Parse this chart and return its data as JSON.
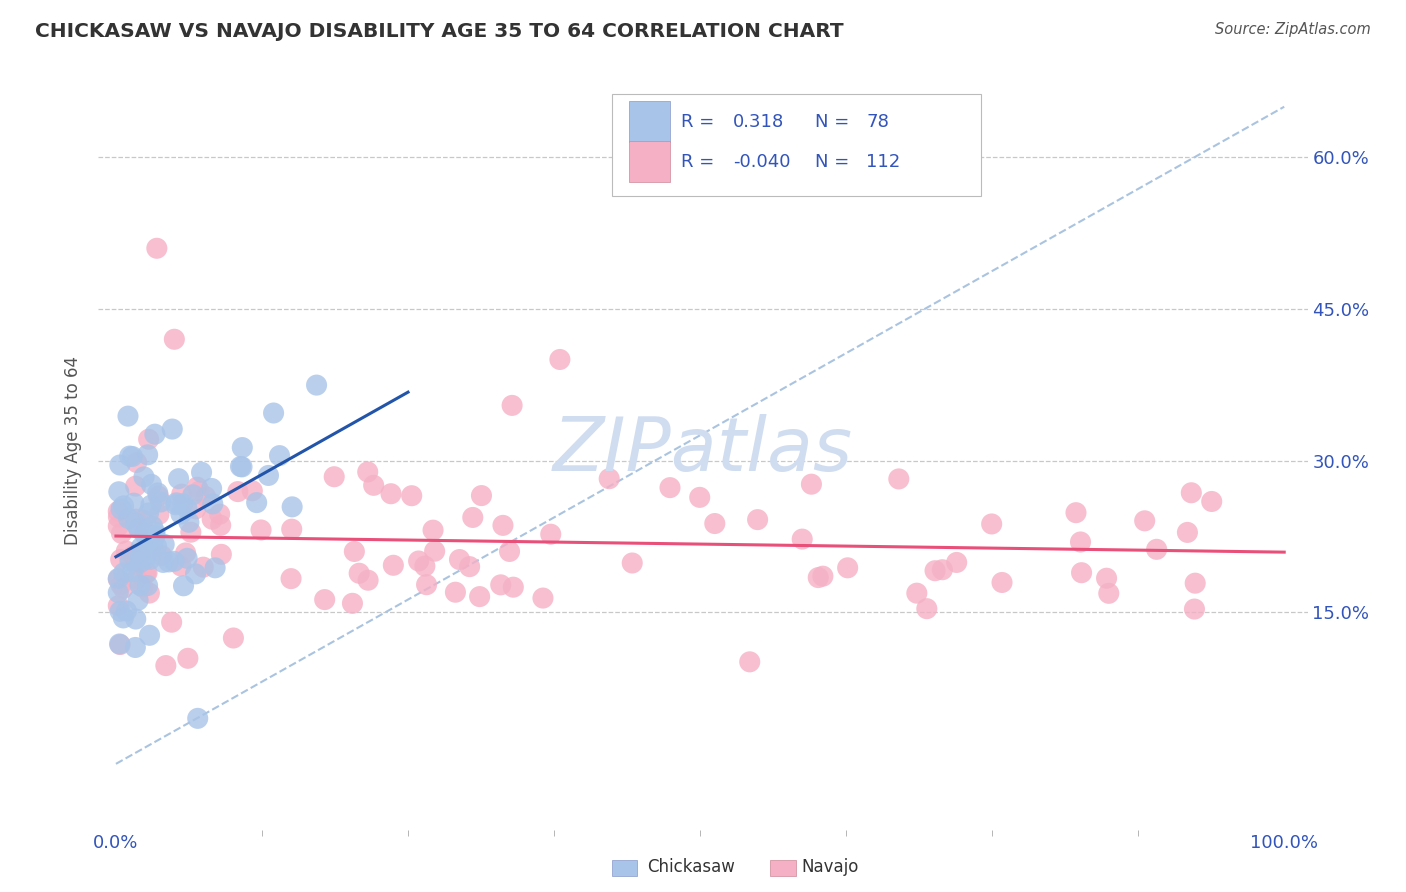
{
  "title": "CHICKASAW VS NAVAJO DISABILITY AGE 35 TO 64 CORRELATION CHART",
  "source_text": "Source: ZipAtlas.com",
  "ylabel": "Disability Age 35 to 64",
  "xlim": [
    0.0,
    1.0
  ],
  "ylim": [
    0.0,
    0.65
  ],
  "xtick_labels": [
    "0.0%",
    "100.0%"
  ],
  "ytick_labels": [
    "15.0%",
    "30.0%",
    "45.0%",
    "60.0%"
  ],
  "ytick_values": [
    0.15,
    0.3,
    0.45,
    0.6
  ],
  "legend_R1_val": "0.318",
  "legend_N1_val": "78",
  "legend_R2_val": "-0.040",
  "legend_N2_val": "112",
  "chickasaw_color": "#a8c4e8",
  "navajo_color": "#f5b0c5",
  "trendline1_color": "#2255aa",
  "trendline2_color": "#e8507a",
  "ref_line_color": "#aac4e0",
  "watermark_color": "#d0ddf0",
  "background_color": "#ffffff",
  "grid_color": "#c8c8c8",
  "legend_text_color": "#3355bb",
  "title_color": "#333333",
  "tick_label_color": "#3355bb"
}
